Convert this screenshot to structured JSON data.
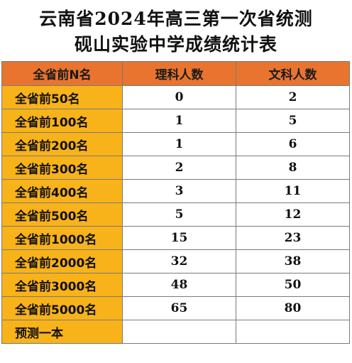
{
  "title_line1": "云南省2024年高三第一次省统测",
  "title_line2": "砚山实验中学成绩统计表",
  "table": {
    "headers": [
      "全省前N名",
      "理科人数",
      "文科人数"
    ],
    "rows": [
      {
        "rank": "全省前50名",
        "science": "0",
        "liberal_arts": "2"
      },
      {
        "rank": "全省前100名",
        "science": "1",
        "liberal_arts": "5"
      },
      {
        "rank": "全省前200名",
        "science": "1",
        "liberal_arts": "6"
      },
      {
        "rank": "全省前300名",
        "science": "2",
        "liberal_arts": "8"
      },
      {
        "rank": "全省前400名",
        "science": "3",
        "liberal_arts": "11"
      },
      {
        "rank": "全省前500名",
        "science": "5",
        "liberal_arts": "12"
      },
      {
        "rank": "全省前1000名",
        "science": "15",
        "liberal_arts": "23"
      },
      {
        "rank": "全省前2000名",
        "science": "32",
        "liberal_arts": "38"
      },
      {
        "rank": "全省前3000名",
        "science": "48",
        "liberal_arts": "50"
      },
      {
        "rank": "全省前5000名",
        "science": "65",
        "liberal_arts": "80"
      },
      {
        "rank": "预测一本",
        "science": "",
        "liberal_arts": ""
      }
    ]
  },
  "colors": {
    "header_bg": "#e8742f",
    "rank_bg": "#f8b21a",
    "border": "#7a7a7a"
  }
}
